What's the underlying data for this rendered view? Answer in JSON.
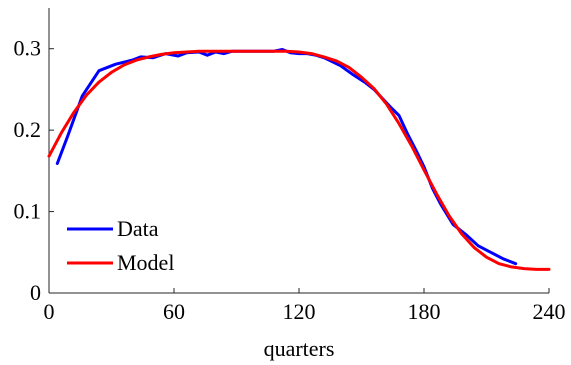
{
  "chart_data": {
    "type": "line",
    "title": "",
    "xlabel": "quarters",
    "ylabel": "",
    "xlim": [
      0,
      240
    ],
    "ylim": [
      0,
      0.35
    ],
    "xticks": [
      0,
      60,
      120,
      180,
      240
    ],
    "yticks": [
      0,
      0.1,
      0.2,
      0.3
    ],
    "xtick_labels": [
      "0",
      "60",
      "120",
      "180",
      "240"
    ],
    "ytick_labels": [
      "0",
      "0.1",
      "0.2",
      "0.3"
    ],
    "grid": false,
    "legend_position": "bottom-left",
    "series": [
      {
        "name": "Data",
        "color": "#0000ff",
        "x": [
          4,
          9,
          16,
          24,
          32,
          40,
          44,
          50,
          56,
          62,
          66,
          72,
          76,
          80,
          84,
          88,
          92,
          96,
          100,
          104,
          108,
          112,
          116,
          120,
          124,
          128,
          132,
          136,
          140,
          146,
          152,
          156,
          160,
          164,
          168,
          172,
          176,
          180,
          184,
          188,
          194,
          200,
          206,
          212,
          218,
          224
        ],
        "y": [
          0.159,
          0.193,
          0.242,
          0.273,
          0.281,
          0.286,
          0.29,
          0.289,
          0.294,
          0.291,
          0.295,
          0.296,
          0.292,
          0.296,
          0.294,
          0.297,
          0.297,
          0.297,
          0.297,
          0.297,
          0.297,
          0.299,
          0.295,
          0.294,
          0.294,
          0.292,
          0.289,
          0.284,
          0.279,
          0.268,
          0.258,
          0.25,
          0.239,
          0.228,
          0.218,
          0.196,
          0.176,
          0.155,
          0.129,
          0.109,
          0.084,
          0.072,
          0.058,
          0.05,
          0.042,
          0.036
        ]
      },
      {
        "name": "Model",
        "color": "#ff0000",
        "x": [
          0,
          6,
          12,
          18,
          24,
          30,
          36,
          42,
          48,
          54,
          60,
          66,
          72,
          78,
          84,
          90,
          96,
          102,
          108,
          114,
          120,
          126,
          132,
          138,
          144,
          150,
          156,
          162,
          168,
          174,
          180,
          186,
          192,
          198,
          204,
          210,
          216,
          222,
          228,
          234,
          240
        ],
        "y": [
          0.168,
          0.197,
          0.222,
          0.243,
          0.259,
          0.271,
          0.28,
          0.286,
          0.29,
          0.293,
          0.295,
          0.296,
          0.297,
          0.297,
          0.297,
          0.297,
          0.297,
          0.297,
          0.297,
          0.297,
          0.296,
          0.294,
          0.29,
          0.285,
          0.277,
          0.265,
          0.251,
          0.232,
          0.208,
          0.181,
          0.151,
          0.122,
          0.095,
          0.073,
          0.056,
          0.044,
          0.036,
          0.032,
          0.03,
          0.029,
          0.029
        ]
      }
    ]
  }
}
